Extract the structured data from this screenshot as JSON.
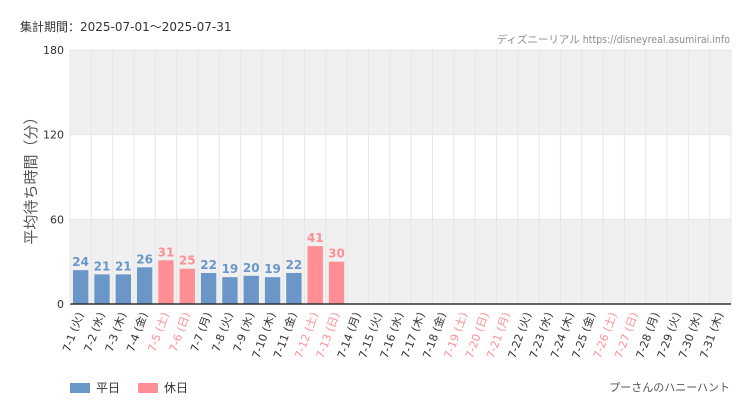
{
  "header": {
    "period": "集計期間：2025-07-01～2025-07-31",
    "source": "ディズニーリアル https://disneyreal.asumirai.info"
  },
  "footer": {
    "attraction": "プーさんのハニーハント"
  },
  "colors": {
    "weekday": "#6a96c8",
    "holiday": "#ff8f95",
    "band": "#f0f0f0",
    "grid": "#e6e6e6",
    "axis": "#333333"
  },
  "chart_data": {
    "type": "bar",
    "ylabel": "平均待ち時間（分）",
    "ylim": [
      0,
      180
    ],
    "yticks": [
      0,
      60,
      120,
      180
    ],
    "bands": [
      [
        120,
        180
      ],
      [
        0,
        60
      ]
    ],
    "legend": [
      {
        "name": "平日",
        "color": "#6a96c8"
      },
      {
        "name": "休日",
        "color": "#ff8f95"
      }
    ],
    "categories": [
      "7-1 (火)",
      "7-2 (水)",
      "7-3 (木)",
      "7-4 (金)",
      "7-5 (土)",
      "7-6 (日)",
      "7-7 (月)",
      "7-8 (火)",
      "7-9 (水)",
      "7-10 (木)",
      "7-11 (金)",
      "7-12 (土)",
      "7-13 (日)",
      "7-14 (月)",
      "7-15 (火)",
      "7-16 (水)",
      "7-17 (木)",
      "7-18 (金)",
      "7-19 (土)",
      "7-20 (日)",
      "7-21 (月)",
      "7-22 (火)",
      "7-23 (水)",
      "7-24 (木)",
      "7-25 (金)",
      "7-26 (土)",
      "7-27 (日)",
      "7-28 (月)",
      "7-29 (火)",
      "7-30 (水)",
      "7-31 (木)"
    ],
    "holiday": [
      false,
      false,
      false,
      false,
      true,
      true,
      false,
      false,
      false,
      false,
      false,
      true,
      true,
      false,
      false,
      false,
      false,
      false,
      true,
      true,
      true,
      false,
      false,
      false,
      false,
      true,
      true,
      false,
      false,
      false,
      false
    ],
    "values": [
      24,
      21,
      21,
      26,
      31,
      25,
      22,
      19,
      20,
      19,
      22,
      41,
      30,
      null,
      null,
      null,
      null,
      null,
      null,
      null,
      null,
      null,
      null,
      null,
      null,
      null,
      null,
      null,
      null,
      null,
      null
    ]
  }
}
